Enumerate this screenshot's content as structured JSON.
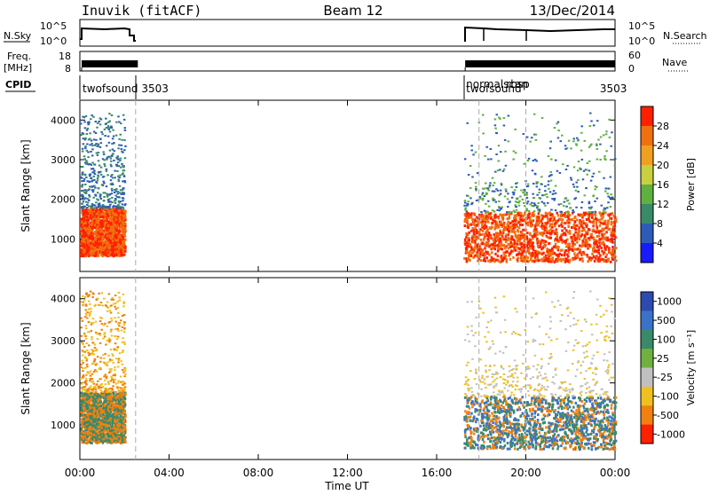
{
  "header": {
    "station": "Inuvik (fitACF)",
    "beam": "Beam 12",
    "date": "13/Dec/2014"
  },
  "top_panels": {
    "nsky_label": "N.Sky",
    "nsearch_label": "N.Search",
    "nsky_ticks": [
      "10^5",
      "10^0"
    ],
    "nsearch_ticks": [
      "10^5",
      "10^0"
    ],
    "freq_label_1": "Freq.",
    "freq_label_2": "[MHz]",
    "freq_ticks": [
      "18",
      "8"
    ],
    "nave_label": "Nave",
    "nave_ticks": [
      "60",
      "0"
    ],
    "cpid_label": "CPID",
    "cpid_entries": [
      {
        "text": "twofsound  3503",
        "row": 1,
        "hour": 0.0
      },
      {
        "text": "normalscan",
        "row": 0,
        "hour": 17.2
      },
      {
        "text": "twofsound",
        "row": 1,
        "hour": 17.2
      },
      {
        "text": "rbsp",
        "row": 0,
        "hour": 19.0
      },
      {
        "text": "3503",
        "row": 1,
        "hour": 23.2
      }
    ]
  },
  "time_axis": {
    "label": "Time UT",
    "ticks": [
      "00:00",
      "04:00",
      "08:00",
      "12:00",
      "16:00",
      "20:00",
      "00:00"
    ],
    "tick_hours": [
      0,
      4,
      8,
      12,
      16,
      20,
      24
    ]
  },
  "colors": {
    "power_scale": [
      "#1a1aff",
      "#2c5cb8",
      "#3a8a6a",
      "#60b040",
      "#c8d040",
      "#f0a020",
      "#f07010",
      "#ff2000"
    ],
    "velocity_scale": [
      "#2c4ab0",
      "#3a72c8",
      "#3a8a6a",
      "#70b040",
      "#c0c0c0",
      "#f0c020",
      "#f08010",
      "#ff2000"
    ]
  },
  "chart_data": [
    {
      "type": "heatmap",
      "title": "",
      "xlabel": "",
      "ylabel": "Slant Range [km]",
      "xlim": [
        0,
        24
      ],
      "ylim": [
        180,
        4500
      ],
      "y_ticks": [
        "1000",
        "2000",
        "3000",
        "4000"
      ],
      "y_tick_values": [
        1000,
        2000,
        3000,
        4000
      ],
      "colorbar": {
        "label": "Power [dB]",
        "range": [
          0,
          32
        ],
        "ticks": [
          "4",
          "8",
          "12",
          "16",
          "20",
          "24",
          "28"
        ],
        "tick_values": [
          4,
          8,
          12,
          16,
          20,
          24,
          28
        ]
      },
      "scatter_regions": [
        {
          "hours": [
            0.0,
            2.0
          ],
          "range_km": [
            600,
            1800
          ],
          "dominant": [
            "#ff2000",
            "#f07010"
          ]
        },
        {
          "hours": [
            0.0,
            2.0
          ],
          "range_km": [
            1800,
            4200
          ],
          "dominant": [
            "#3a8a6a",
            "#2c5cb8"
          ]
        },
        {
          "hours": [
            17.2,
            24.0
          ],
          "range_km": [
            450,
            1700
          ],
          "dominant": [
            "#ff2000",
            "#f07010"
          ]
        },
        {
          "hours": [
            17.2,
            24.0
          ],
          "range_km": [
            1700,
            4200
          ],
          "dominant": [
            "#60b040",
            "#2c5cb8"
          ]
        }
      ]
    },
    {
      "type": "heatmap",
      "title": "",
      "xlabel": "Time UT",
      "ylabel": "Slant Range [km]",
      "xlim": [
        0,
        24
      ],
      "ylim": [
        180,
        4500
      ],
      "y_ticks": [
        "1000",
        "2000",
        "3000",
        "4000"
      ],
      "y_tick_values": [
        1000,
        2000,
        3000,
        4000
      ],
      "colorbar": {
        "label": "Velocity [m s⁻¹]",
        "ticks": [
          "1000",
          "500",
          "100",
          "25",
          "-25",
          "-100",
          "-500",
          "-1000"
        ],
        "tick_values": [
          1000,
          500,
          100,
          25,
          -25,
          -100,
          -500,
          -1000
        ]
      },
      "scatter_regions": [
        {
          "hours": [
            0.0,
            2.0
          ],
          "range_km": [
            600,
            1800
          ],
          "dominant": [
            "#f08010",
            "#3a8a6a"
          ]
        },
        {
          "hours": [
            0.0,
            2.0
          ],
          "range_km": [
            1800,
            4200
          ],
          "dominant": [
            "#f0c020",
            "#f08010"
          ]
        },
        {
          "hours": [
            17.2,
            24.0
          ],
          "range_km": [
            450,
            1700
          ],
          "dominant": [
            "#3a72c8",
            "#3a8a6a",
            "#f08010"
          ]
        },
        {
          "hours": [
            17.2,
            24.0
          ],
          "range_km": [
            1700,
            4200
          ],
          "dominant": [
            "#f0c020",
            "#c0c0c0"
          ]
        }
      ]
    }
  ]
}
